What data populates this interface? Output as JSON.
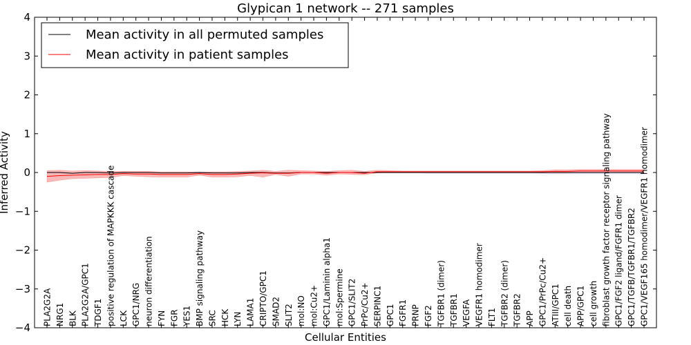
{
  "chart_data": {
    "type": "line",
    "title": "Glypican 1 network -- 271 samples",
    "xlabel": "Cellular Entities",
    "ylabel": "Inferred Activity",
    "ylim": [
      -4,
      4
    ],
    "yticks": [
      -4,
      -3,
      -2,
      -1,
      0,
      1,
      2,
      3,
      4
    ],
    "grid": false,
    "legend_position": "top-left",
    "categories": [
      "PLA2G2A",
      "NRG1",
      "BLK",
      "PLA2G2A/GPC1",
      "TDGF1",
      "positive regulation of MAPKKK cascade",
      "LCK",
      "GPC1/NRG",
      "neuron differentiation",
      "FYN",
      "FGR",
      "YES1",
      "BMP signaling pathway",
      "SRC",
      "HCK",
      "LYN",
      "LAMA1",
      "CRIPTO/GPC1",
      "SMAD2",
      "SLIT2",
      "mol:NO",
      "mol:Cu2+",
      "GPC1/Laminin alpha1",
      "mol:Spermine",
      "GPC1/SLIT2",
      "PrPc/Cu2+",
      "SERPINC1",
      "GPC1",
      "FGFR1",
      "PRNP",
      "FGF2",
      "TGFBR1 (dimer)",
      "TGFBR1",
      "VEGFA",
      "VEGFR1 homodimer",
      "FLT1",
      "TGFBR2 (dimer)",
      "TGFBR2",
      "APP",
      "GPC1/PrPc/Cu2+",
      "ATIII/GPC1",
      "cell death",
      "APP/GPC1",
      "cell growth",
      "fibroblast growth factor receptor signaling pathway",
      "GPC1/FGF2 ligand/FGFR1 dimer",
      "GPC1/TGFB/TGFBR1/TGFBR2",
      "GPC1/VEGF165 homodimer/VEGFR1 homodimer"
    ],
    "series": [
      {
        "name": "Mean activity in all permuted samples",
        "color": "#000000",
        "values": [
          0.0,
          0.0,
          -0.02,
          0.0,
          0.0,
          -0.01,
          0.0,
          0.0,
          0.0,
          -0.01,
          -0.01,
          -0.01,
          0.0,
          -0.01,
          -0.01,
          -0.01,
          0.0,
          0.0,
          -0.01,
          -0.01,
          0.0,
          0.0,
          0.0,
          0.0,
          0.0,
          0.0,
          0.0,
          0.0,
          0.0,
          0.0,
          0.0,
          0.0,
          0.0,
          0.0,
          0.0,
          0.0,
          0.0,
          0.0,
          0.0,
          0.0,
          0.0,
          0.0,
          0.0,
          0.0,
          0.0,
          0.0,
          0.0,
          0.0
        ],
        "band_low": [
          -0.02,
          -0.02,
          -0.04,
          -0.02,
          -0.02,
          -0.03,
          -0.02,
          -0.02,
          -0.02,
          -0.03,
          -0.03,
          -0.03,
          -0.02,
          -0.03,
          -0.03,
          -0.03,
          -0.02,
          -0.02,
          -0.03,
          -0.03,
          -0.02,
          -0.02,
          -0.02,
          -0.02,
          -0.02,
          -0.02,
          -0.02,
          -0.02,
          -0.02,
          -0.02,
          -0.03,
          -0.03,
          -0.03,
          -0.03,
          -0.03,
          -0.03,
          -0.03,
          -0.03,
          -0.03,
          -0.04,
          -0.04,
          -0.04,
          -0.04,
          -0.04,
          -0.04,
          -0.04,
          -0.04,
          -0.04
        ],
        "band_high": [
          0.02,
          0.02,
          0.0,
          0.02,
          0.02,
          0.01,
          0.02,
          0.02,
          0.02,
          0.01,
          0.01,
          0.01,
          0.02,
          0.01,
          0.01,
          0.01,
          0.02,
          0.02,
          0.01,
          0.01,
          0.02,
          0.02,
          0.02,
          0.02,
          0.02,
          0.02,
          0.02,
          0.02,
          0.02,
          0.02,
          0.02,
          0.02,
          0.02,
          0.02,
          0.02,
          0.02,
          0.02,
          0.02,
          0.02,
          0.02,
          0.02,
          0.02,
          0.02,
          0.02,
          0.02,
          0.02,
          0.02,
          0.02
        ]
      },
      {
        "name": "Mean activity in patient samples",
        "color": "#ff0000",
        "band_color": "#f7a0a0",
        "values": [
          -0.1,
          -0.08,
          -0.07,
          -0.06,
          -0.05,
          -0.05,
          -0.03,
          -0.04,
          -0.04,
          -0.05,
          -0.05,
          -0.05,
          -0.03,
          -0.05,
          -0.05,
          -0.04,
          -0.02,
          -0.01,
          -0.02,
          -0.02,
          0.0,
          0.0,
          -0.02,
          0.0,
          0.0,
          -0.02,
          0.02,
          0.02,
          0.02,
          0.02,
          0.02,
          0.02,
          0.02,
          0.02,
          0.02,
          0.02,
          0.02,
          0.02,
          0.02,
          0.02,
          0.03,
          0.03,
          0.04,
          0.04,
          0.04,
          0.04,
          0.04,
          0.04
        ],
        "band_low": [
          -0.25,
          -0.2,
          -0.16,
          -0.15,
          -0.14,
          -0.13,
          -0.08,
          -0.1,
          -0.11,
          -0.12,
          -0.12,
          -0.12,
          -0.07,
          -0.12,
          -0.12,
          -0.11,
          -0.08,
          -0.12,
          -0.05,
          -0.1,
          -0.04,
          -0.04,
          -0.07,
          -0.04,
          -0.05,
          -0.06,
          -0.01,
          0.0,
          0.0,
          0.0,
          0.0,
          0.0,
          0.0,
          0.0,
          0.0,
          0.0,
          0.0,
          0.0,
          0.0,
          -0.01,
          -0.01,
          -0.01,
          0.0,
          0.0,
          0.0,
          0.0,
          0.0,
          0.0
        ],
        "band_high": [
          0.05,
          0.06,
          0.04,
          0.05,
          0.04,
          0.03,
          0.03,
          0.03,
          0.03,
          0.02,
          0.02,
          0.02,
          0.01,
          0.02,
          0.02,
          0.03,
          0.04,
          0.06,
          0.03,
          0.06,
          0.05,
          0.04,
          0.03,
          0.05,
          0.06,
          0.03,
          0.06,
          0.05,
          0.04,
          0.04,
          0.04,
          0.04,
          0.04,
          0.04,
          0.04,
          0.04,
          0.04,
          0.04,
          0.04,
          0.05,
          0.07,
          0.07,
          0.08,
          0.08,
          0.08,
          0.08,
          0.08,
          0.08
        ]
      }
    ]
  }
}
